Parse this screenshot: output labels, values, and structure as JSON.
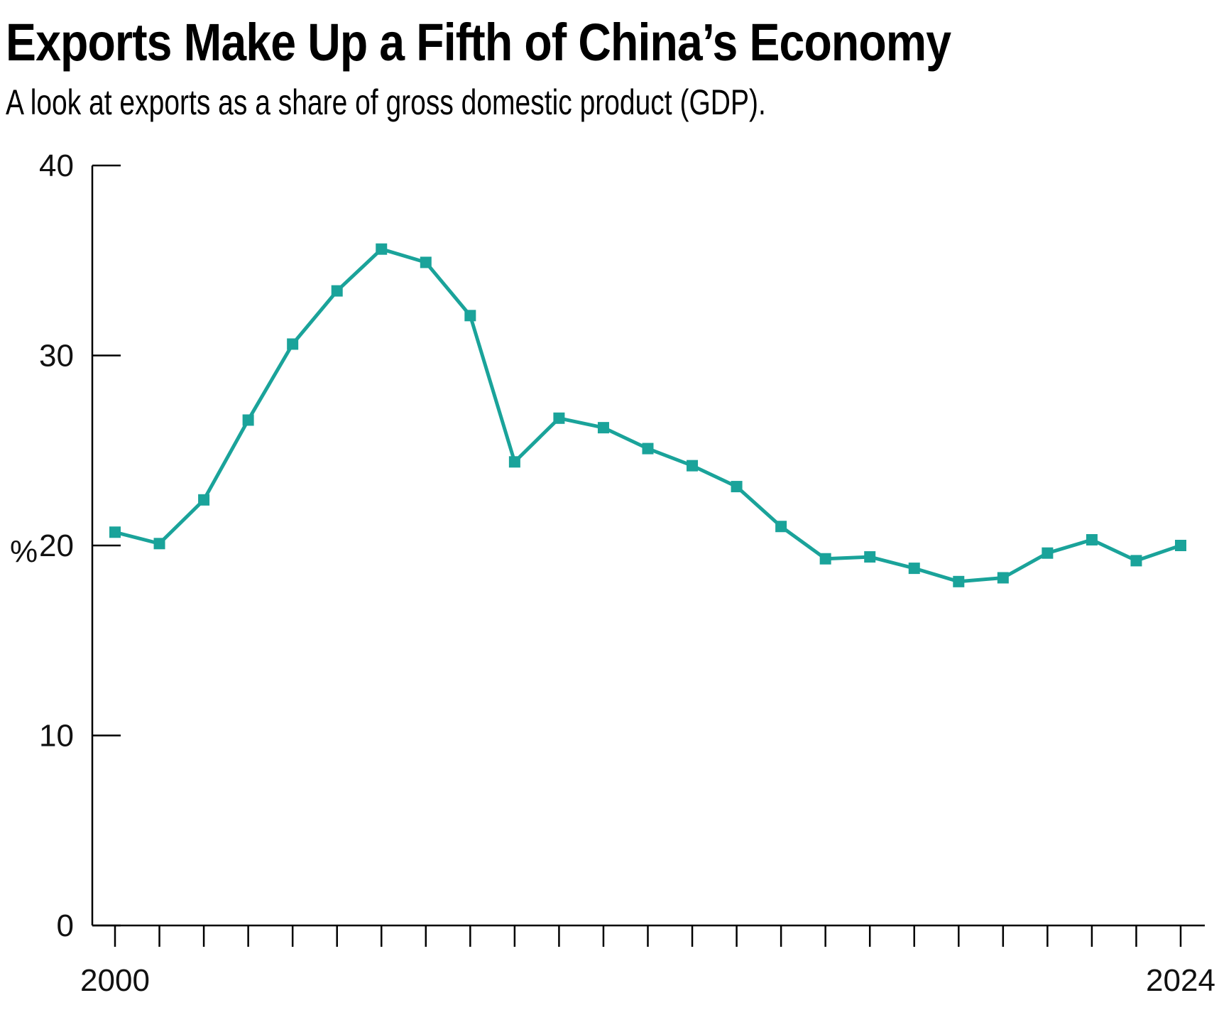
{
  "chart_data": {
    "type": "line",
    "title": "Exports Make Up a Fifth of China’s Economy",
    "subtitle": "A look at exports as a share of gross domestic product (GDP).",
    "ylabel": "%",
    "xlabel": "",
    "ylim": [
      0,
      40
    ],
    "yticks": [
      0,
      10,
      20,
      30,
      40
    ],
    "x_tick_labels": [
      {
        "year": 2000,
        "label": "2000"
      },
      {
        "year": 2024,
        "label": "2024"
      }
    ],
    "grid": false,
    "line_color": "#1aa39a",
    "series": [
      {
        "name": "Exports as % of GDP",
        "x": [
          2000,
          2001,
          2002,
          2003,
          2004,
          2005,
          2006,
          2007,
          2008,
          2009,
          2010,
          2011,
          2012,
          2013,
          2014,
          2015,
          2016,
          2017,
          2018,
          2019,
          2020,
          2021,
          2022,
          2023,
          2024
        ],
        "values": [
          20.7,
          20.1,
          22.4,
          26.6,
          30.6,
          33.4,
          35.6,
          34.9,
          32.1,
          24.4,
          26.7,
          26.2,
          25.1,
          24.2,
          23.1,
          21.0,
          19.3,
          19.4,
          18.8,
          18.1,
          18.3,
          19.6,
          20.3,
          19.2,
          20.0
        ]
      }
    ]
  }
}
